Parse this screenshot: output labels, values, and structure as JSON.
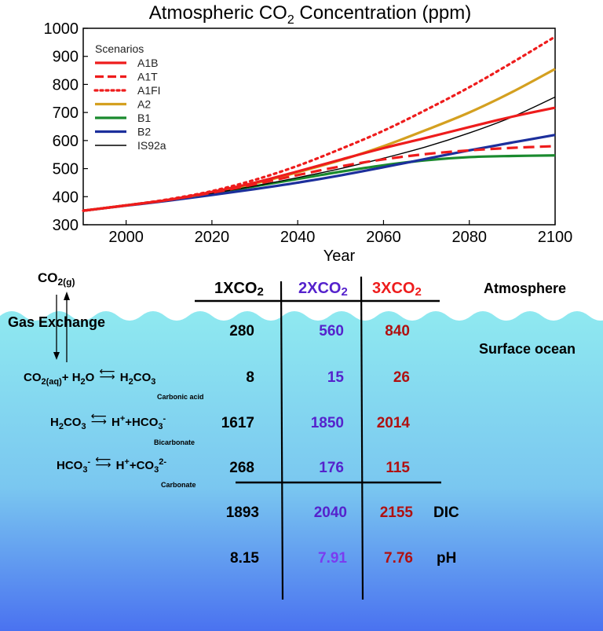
{
  "chart_data": {
    "type": "line",
    "title_parts": [
      "Atmospheric CO",
      "2",
      " Concentration (ppm)"
    ],
    "xlabel": "Year",
    "ylabel": "",
    "xlim": [
      1990,
      2100
    ],
    "ylim": [
      300,
      1000
    ],
    "x_ticks": [
      "2000",
      "2020",
      "2040",
      "2060",
      "2080",
      "2100"
    ],
    "y_ticks": [
      "300",
      "400",
      "500",
      "600",
      "700",
      "800",
      "900",
      "1000"
    ],
    "legend_title": "Scenarios",
    "legend_position": "top-left",
    "x": [
      1990,
      2000,
      2010,
      2020,
      2030,
      2040,
      2050,
      2060,
      2070,
      2080,
      2090,
      2100
    ],
    "series": [
      {
        "name": "A1B",
        "color": "#ee1c1c",
        "dash": "solid",
        "width": 3.2,
        "values": [
          350,
          369,
          389,
          417,
          450,
          490,
          532,
          573,
          610,
          648,
          685,
          717
        ]
      },
      {
        "name": "A1T",
        "color": "#ee1c1c",
        "dash": "dashed",
        "width": 3.2,
        "values": [
          350,
          369,
          389,
          414,
          444,
          477,
          508,
          533,
          552,
          565,
          574,
          580
        ]
      },
      {
        "name": "A1FI",
        "color": "#ee1c1c",
        "dash": "dotted",
        "width": 3.2,
        "values": [
          350,
          369,
          391,
          420,
          460,
          510,
          570,
          635,
          710,
          790,
          878,
          970
        ]
      },
      {
        "name": "A2",
        "color": "#d4a020",
        "dash": "solid",
        "width": 3.2,
        "values": [
          350,
          369,
          389,
          415,
          447,
          487,
          530,
          580,
          638,
          700,
          773,
          855
        ]
      },
      {
        "name": "B1",
        "color": "#1a8a2e",
        "dash": "solid",
        "width": 3.2,
        "values": [
          350,
          369,
          388,
          411,
          437,
          463,
          489,
          512,
          530,
          541,
          545,
          547
        ]
      },
      {
        "name": "B2",
        "color": "#1c2f9c",
        "dash": "solid",
        "width": 3.2,
        "values": [
          350,
          368,
          386,
          406,
          427,
          450,
          476,
          505,
          535,
          565,
          593,
          620
        ]
      },
      {
        "name": "IS92a",
        "color": "#000000",
        "dash": "solid",
        "width": 1.4,
        "values": [
          350,
          369,
          390,
          412,
          438,
          468,
          500,
          537,
          578,
          627,
          684,
          755
        ]
      }
    ]
  },
  "carbonate_table": {
    "headers": [
      {
        "base": "1XCO",
        "sub": "2",
        "color": "#000000"
      },
      {
        "base": "2XCO",
        "sub": "2",
        "color": "#5522cc"
      },
      {
        "base": "3XCO",
        "sub": "2",
        "color": "#ee1c1c"
      }
    ],
    "rows": [
      [
        "280",
        "560",
        "840"
      ],
      [
        "8",
        "15",
        "26"
      ],
      [
        "1617",
        "1850",
        "2014"
      ],
      [
        "268",
        "176",
        "115"
      ],
      [
        "1893",
        "2040",
        "2155"
      ],
      [
        "8.15",
        "7.91",
        "7.76"
      ]
    ],
    "row_labels": {
      "dic": "DIC",
      "ph": "pH"
    },
    "zones": {
      "atmosphere": "Atmosphere",
      "surface_ocean": "Surface ocean"
    },
    "colors": {
      "ocean_top": "#8fe9f0",
      "ocean_bottom": "#4a72f0"
    }
  },
  "reactions": {
    "co2_gas": {
      "base": "CO",
      "sub": "2(g)"
    },
    "gas_exchange": "Gas Exchange",
    "eq1": {
      "left_a": "CO",
      "left_a_sub": "2(aq)",
      "left_b": "+ H",
      "left_b_sub": "2",
      "left_c": "O",
      "right": "H",
      "right_sub1": "2",
      "right_b": "CO",
      "right_sub2": "3",
      "name": "Carbonic  acid"
    },
    "eq2": {
      "left": "H",
      "left_sub1": "2",
      "left_b": "CO",
      "left_sub2": "3",
      "right_a": "H",
      "right_sup": "+",
      "right_b": "+HCO",
      "right_sub": "3",
      "right_sup2": "-",
      "name": "Bicarbonate"
    },
    "eq3": {
      "left": "HCO",
      "left_sub": "3",
      "left_sup": "-",
      "right_a": "H",
      "right_sup": "+",
      "right_b": "+CO",
      "right_sub": "3",
      "right_sup2": "2-",
      "name": "Carbonate"
    }
  }
}
